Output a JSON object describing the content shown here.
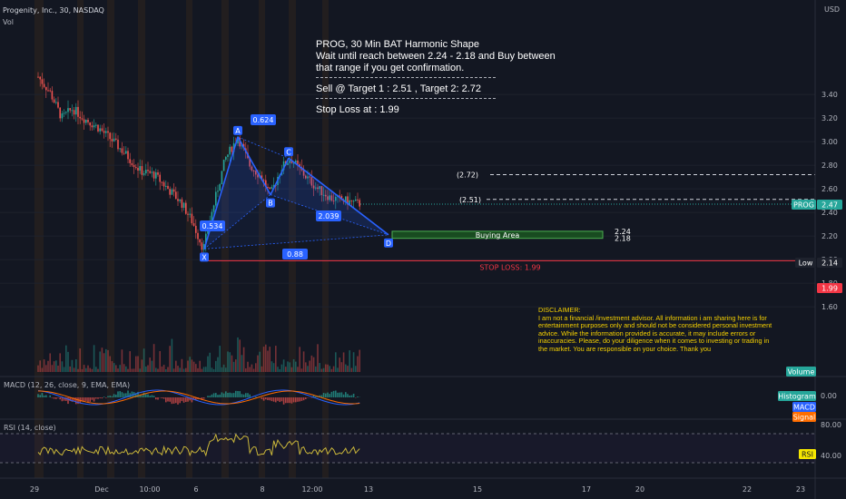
{
  "header": {
    "symbol_title": "Progenity, Inc., 30, NASDAQ",
    "volume_label": "Vol"
  },
  "currency": "USD",
  "annotation": {
    "title": "PROG,  30 Min BAT Harmonic Shape",
    "line1": "Wait until reach between 2.24 - 2.18 and Buy between",
    "line2": "that range if you get confirmation.",
    "targets": "Sell @ Target 1 : 2.51 , Target 2: 2.72",
    "stoploss": "Stop Loss at : 1.99"
  },
  "disclaimer": "DISCLAIMER:\nI am not a financial /investment advisor. All information i am sharing here is for entertainment purposes only and should not be considered personal investment advice. While the information provided is accurate, it may include errors or inaccuracies. Please, do your diligence when it comes to investing or trading in the market. You are responsible on your choice. Thank you",
  "chart_data": {
    "type": "candlestick",
    "price_axis": {
      "ticks": [
        1.6,
        1.8,
        2.0,
        2.2,
        2.4,
        2.6,
        2.8,
        3.0,
        3.2,
        3.4
      ],
      "range": [
        1.52,
        3.5
      ]
    },
    "time_axis": [
      "29",
      "Dec",
      "10:00",
      "6",
      "8",
      "12:00",
      "13",
      "15",
      "17",
      "20",
      "22",
      "23"
    ],
    "pattern": {
      "name": "BAT Harmonic",
      "points": [
        {
          "label": "X",
          "price": 2.09
        },
        {
          "label": "A",
          "price": 3.04
        },
        {
          "label": "B",
          "price": 2.55
        },
        {
          "label": "C",
          "price": 2.86
        },
        {
          "label": "D",
          "price": 2.21
        }
      ],
      "ratios": [
        "0.624",
        "0.534",
        "2.039",
        "0.88"
      ]
    },
    "buying_area": {
      "label": "Buying Area",
      "top": 2.24,
      "bottom": 2.18
    },
    "buy_labels": [
      "2.24",
      "2.18"
    ],
    "targets": [
      {
        "label": "(2.72)",
        "price": 2.72
      },
      {
        "label": "(2.51)",
        "price": 2.51
      }
    ],
    "stop_loss": {
      "label": "STOP LOSS: 1.99",
      "price": 1.99,
      "tag": "1.99"
    },
    "last_price": {
      "symbol": "PROG",
      "price": "2.47"
    },
    "low": {
      "label": "Low",
      "price": "2.14"
    },
    "volume_badge": "Volume",
    "macd": {
      "title": "MACD (12, 26, close, 9, EMA, EMA)",
      "tick": "0.00",
      "legend": [
        "Histogram",
        "MACD",
        "Signal"
      ]
    },
    "rsi": {
      "title": "RSI (14, close)",
      "ticks": [
        "80.00",
        "40.00"
      ],
      "badge": "RSI"
    },
    "colors": {
      "up": "#26a69a",
      "down": "#ef5350",
      "pattern": "#2962ff",
      "stop": "#f23645",
      "rsi": "#c9b63a",
      "macd": "#2962ff",
      "signal": "#ff6d00"
    }
  }
}
